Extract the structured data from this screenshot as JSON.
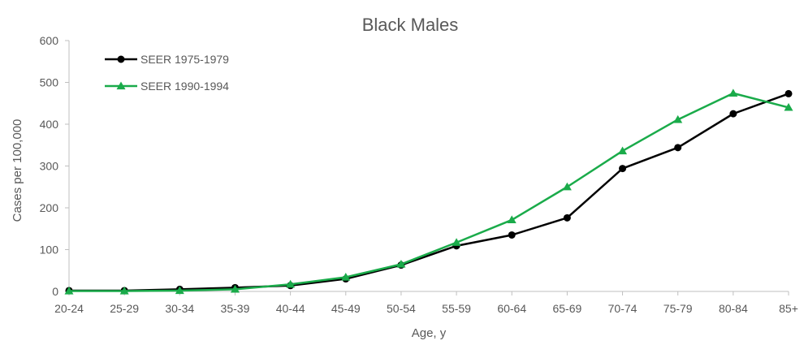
{
  "chart_data": {
    "type": "line",
    "title": "Black Males",
    "xlabel": "Age, y",
    "ylabel": "Cases per 100,000",
    "categories": [
      "20-24",
      "25-29",
      "30-34",
      "35-39",
      "40-44",
      "45-49",
      "50-54",
      "55-59",
      "60-64",
      "65-69",
      "70-74",
      "75-79",
      "80-84",
      "85+"
    ],
    "ylim": [
      0,
      600
    ],
    "yticks": [
      "0",
      "100",
      "200",
      "300",
      "400",
      "500",
      "600"
    ],
    "grid": false,
    "legend_position": "top-left",
    "series": [
      {
        "name": "SEER 1975-1979",
        "color": "#000000",
        "marker": "circle",
        "values": [
          2,
          2,
          5,
          9,
          14,
          30,
          63,
          109,
          135,
          176,
          294,
          344,
          425,
          473
        ]
      },
      {
        "name": "SEER 1990-1994",
        "color": "#1aab4a",
        "marker": "triangle",
        "values": [
          1,
          1,
          2,
          5,
          17,
          34,
          65,
          117,
          171,
          250,
          336,
          411,
          474,
          440
        ]
      }
    ]
  }
}
